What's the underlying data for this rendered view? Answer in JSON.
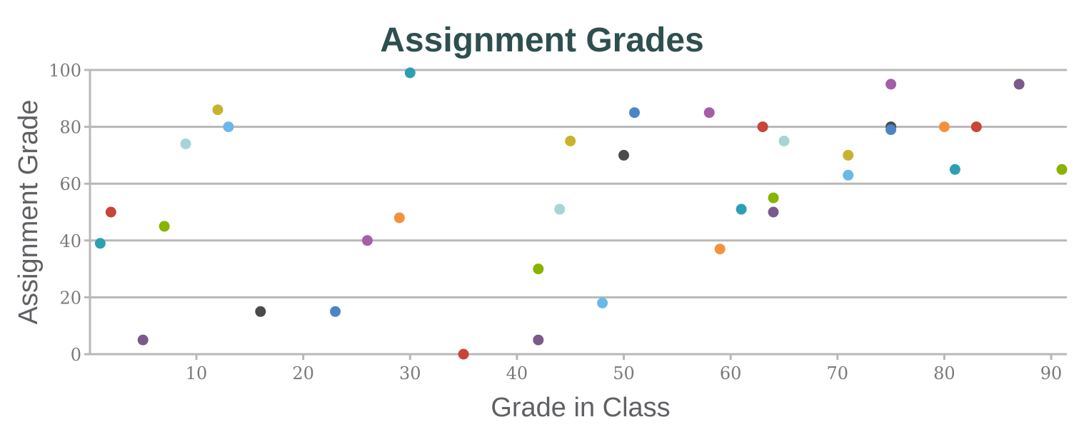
{
  "chart_data": {
    "type": "scatter",
    "title": "Assignment Grades",
    "xlabel": "Grade in Class",
    "ylabel": "Assignment Grade",
    "xlim": [
      0,
      91
    ],
    "ylim": [
      0,
      100
    ],
    "xticks": [
      10,
      20,
      30,
      40,
      50,
      60,
      70,
      80,
      90
    ],
    "yticks": [
      0,
      20,
      40,
      60,
      80,
      100
    ],
    "grid": "horizontal",
    "points": [
      {
        "x": 1,
        "y": 39,
        "color": "#2ca0b3"
      },
      {
        "x": 2,
        "y": 50,
        "color": "#c8453a"
      },
      {
        "x": 5,
        "y": 5,
        "color": "#7a5a8a"
      },
      {
        "x": 7,
        "y": 45,
        "color": "#86b400"
      },
      {
        "x": 9,
        "y": 74,
        "color": "#a8d4d6"
      },
      {
        "x": 12,
        "y": 86,
        "color": "#c6b42e"
      },
      {
        "x": 13,
        "y": 80,
        "color": "#6ab8e8"
      },
      {
        "x": 16,
        "y": 15,
        "color": "#4b4a48"
      },
      {
        "x": 23,
        "y": 15,
        "color": "#4d84c4"
      },
      {
        "x": 26,
        "y": 40,
        "color": "#a45ea8"
      },
      {
        "x": 29,
        "y": 48,
        "color": "#f4913e"
      },
      {
        "x": 30,
        "y": 99,
        "color": "#2ca0b3"
      },
      {
        "x": 35,
        "y": 0,
        "color": "#c8453a"
      },
      {
        "x": 42,
        "y": 5,
        "color": "#7a5a8a"
      },
      {
        "x": 42,
        "y": 30,
        "color": "#86b400"
      },
      {
        "x": 44,
        "y": 51,
        "color": "#a8d4d6"
      },
      {
        "x": 45,
        "y": 75,
        "color": "#c6b42e"
      },
      {
        "x": 48,
        "y": 18,
        "color": "#6ab8e8"
      },
      {
        "x": 50,
        "y": 70,
        "color": "#4b4a48"
      },
      {
        "x": 51,
        "y": 85,
        "color": "#4d84c4"
      },
      {
        "x": 58,
        "y": 85,
        "color": "#a45ea8"
      },
      {
        "x": 59,
        "y": 37,
        "color": "#f4913e"
      },
      {
        "x": 61,
        "y": 51,
        "color": "#2ca0b3"
      },
      {
        "x": 63,
        "y": 80,
        "color": "#c8453a"
      },
      {
        "x": 64,
        "y": 50,
        "color": "#7a5a8a"
      },
      {
        "x": 64,
        "y": 55,
        "color": "#86b400"
      },
      {
        "x": 65,
        "y": 75,
        "color": "#a8d4d6"
      },
      {
        "x": 71,
        "y": 70,
        "color": "#c6b42e"
      },
      {
        "x": 71,
        "y": 63,
        "color": "#6ab8e8"
      },
      {
        "x": 75,
        "y": 80,
        "color": "#4b4a48"
      },
      {
        "x": 75,
        "y": 79,
        "color": "#4d84c4"
      },
      {
        "x": 75,
        "y": 95,
        "color": "#a45ea8"
      },
      {
        "x": 80,
        "y": 80,
        "color": "#f4913e"
      },
      {
        "x": 81,
        "y": 65,
        "color": "#2ca0b3"
      },
      {
        "x": 83,
        "y": 80,
        "color": "#c8453a"
      },
      {
        "x": 87,
        "y": 95,
        "color": "#7a5a8a"
      },
      {
        "x": 91,
        "y": 65,
        "color": "#86b400"
      }
    ],
    "colors": {
      "title": "#2f4f4f",
      "axis_title": "#5f6063",
      "tick_label": "#7a7a7a",
      "grid": "#b8b8b8"
    }
  }
}
